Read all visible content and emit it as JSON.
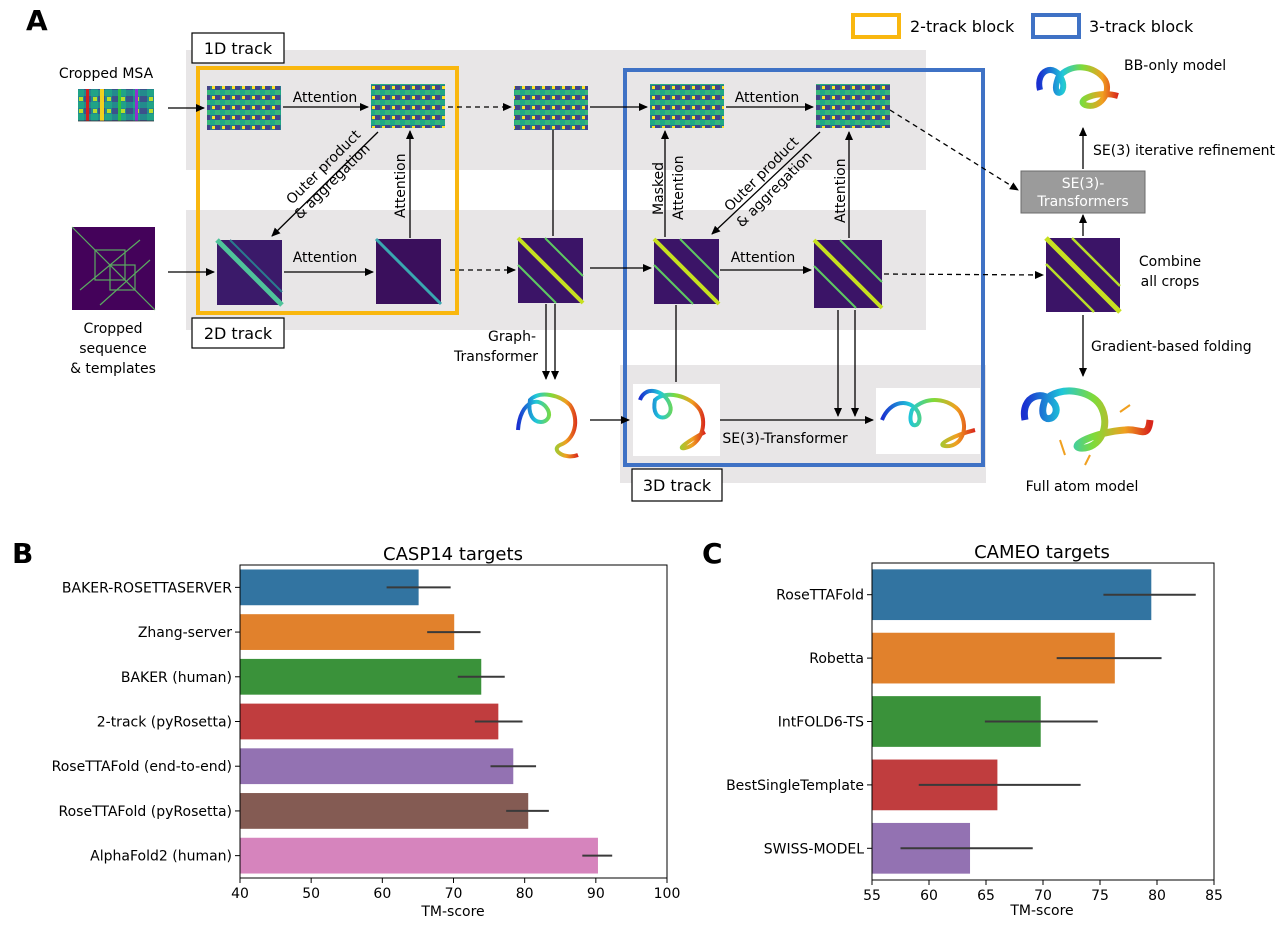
{
  "panel_labels": {
    "a": "A",
    "b": "B",
    "c": "C"
  },
  "legend": {
    "two_track": "2-track block",
    "three_track": "3-track block",
    "two_track_color": "#F9B70F",
    "three_track_color": "#3F72C5"
  },
  "tracks": {
    "t1": "1D track",
    "t2": "2D track",
    "t3": "3D track"
  },
  "inputs": {
    "msa": "Cropped MSA",
    "seq": [
      "Cropped",
      "sequence",
      "& templates"
    ]
  },
  "ops": {
    "attention": "Attention",
    "outer_product": "Outer product",
    "aggregation": "& aggregation",
    "masked": "Masked",
    "graph_transformer": [
      "Graph-",
      "Transformer"
    ],
    "se3_transformer": "SE(3)-Transformer",
    "se3_transformers_box": [
      "SE(3)-",
      "Transformers"
    ],
    "se3_refinement": "SE(3) iterative refinement",
    "bb_only": "BB-only model",
    "combine": [
      "Combine",
      "all crops"
    ],
    "gradient": "Gradient-based folding",
    "full_atom": "Full atom model"
  },
  "icons": {
    "msa": "msa-heatmap-icon",
    "contact": "contact-map-icon",
    "protein": "protein-ribbon-icon"
  },
  "chart_data": [
    {
      "type": "bar",
      "orientation": "horizontal",
      "title": "CASP14 targets",
      "xlabel": "TM-score",
      "ylabel": "",
      "xlim": [
        40,
        100
      ],
      "xticks": [
        40,
        50,
        60,
        70,
        80,
        90,
        100
      ],
      "categories": [
        "BAKER-ROSETTASERVER",
        "Zhang-server",
        "BAKER (human)",
        "2-track (pyRosetta)",
        "RoseTTAFold (end-to-end)",
        "RoseTTAFold (pyRosetta)",
        "AlphaFold2 (human)"
      ],
      "values": [
        65.1,
        70.1,
        73.9,
        76.3,
        78.4,
        80.5,
        90.3
      ],
      "err_low": [
        60.6,
        66.3,
        70.6,
        73.0,
        75.2,
        77.4,
        88.1
      ],
      "err_high": [
        69.6,
        73.8,
        77.2,
        79.7,
        81.6,
        83.4,
        92.3
      ],
      "colors": [
        "#3274A1",
        "#E1812C",
        "#3A923A",
        "#C03D3E",
        "#9372B2",
        "#845B53",
        "#D684BD"
      ],
      "grid": false
    },
    {
      "type": "bar",
      "orientation": "horizontal",
      "title": "CAMEO targets",
      "xlabel": "TM-score",
      "ylabel": "",
      "xlim": [
        55,
        85
      ],
      "xticks": [
        55,
        60,
        65,
        70,
        75,
        80,
        85
      ],
      "categories": [
        "RoseTTAFold",
        "Robetta",
        "IntFOLD6-TS",
        "BestSingleTemplate",
        "SWISS-MODEL"
      ],
      "values": [
        79.5,
        76.3,
        69.8,
        66.0,
        63.6
      ],
      "err_low": [
        75.3,
        71.2,
        64.9,
        59.1,
        57.5
      ],
      "err_high": [
        83.4,
        80.4,
        74.8,
        73.3,
        69.1
      ],
      "colors": [
        "#3274A1",
        "#E1812C",
        "#3A923A",
        "#C03D3E",
        "#9372B2"
      ],
      "grid": false
    }
  ]
}
